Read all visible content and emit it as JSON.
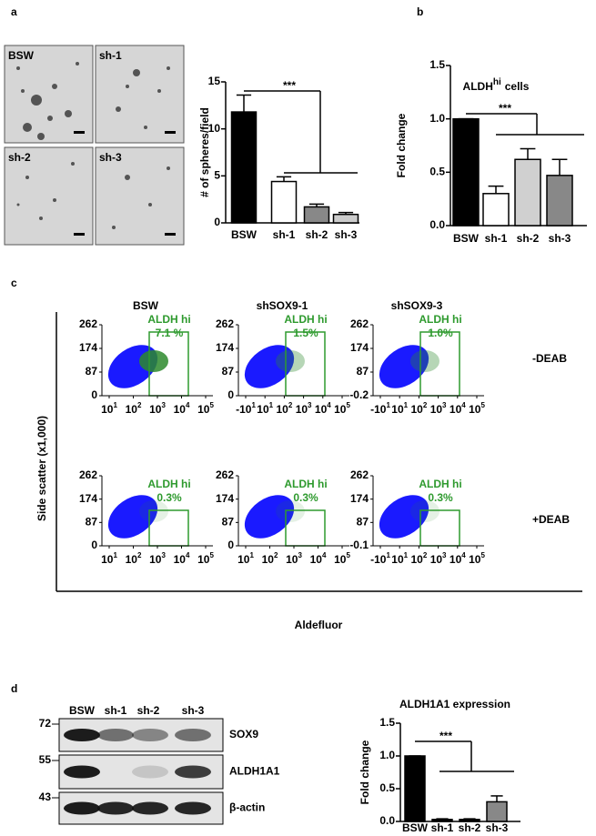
{
  "panel_labels": [
    "a",
    "b",
    "c",
    "d"
  ],
  "spheres": {
    "images": [
      "BSW",
      "sh-1",
      "sh-2",
      "sh-3"
    ]
  },
  "chart_data": [
    {
      "type": "bar",
      "y_label": "# of spheres/field",
      "categories": [
        "BSW",
        "sh-1",
        "sh-2",
        "sh-3"
      ],
      "values": [
        11.8,
        4.4,
        1.7,
        0.9
      ],
      "errors": [
        1.8,
        0.5,
        0.3,
        0.2
      ],
      "colors": [
        "#000000",
        "#ffffff",
        "#888888",
        "#cccccc"
      ],
      "ylim": [
        0,
        15
      ],
      "yticks": [
        0,
        5,
        10,
        15
      ],
      "annotation": "***"
    },
    {
      "type": "bar",
      "title": "ALDH",
      "title_sup": "hi",
      "title_end": "cells",
      "y_label": "Fold change",
      "categories": [
        "BSW",
        "sh-1",
        "sh-2",
        "sh-3"
      ],
      "values": [
        1.0,
        0.3,
        0.62,
        0.47
      ],
      "errors": [
        0,
        0.07,
        0.1,
        0.15
      ],
      "colors": [
        "#000000",
        "#ffffff",
        "#d0d0d0",
        "#888888"
      ],
      "ylim": [
        0,
        1.5
      ],
      "yticks": [
        {
          "value": 0,
          "label": "0.0"
        },
        {
          "value": 0.5,
          "label": "0.5"
        },
        {
          "value": 1,
          "label": "1.0"
        },
        {
          "value": 1.5,
          "label": "1.5"
        }
      ],
      "annotation": "***"
    },
    {
      "type": "bar",
      "title": "ALDH1A1 expression",
      "y_label": "Fold change",
      "categories": [
        "BSW",
        "sh-1",
        "sh-2",
        "sh-3"
      ],
      "values": [
        1.0,
        0.03,
        0.03,
        0.3
      ],
      "errors": [
        0,
        0.01,
        0.01,
        0.09
      ],
      "colors": [
        "#000000",
        "#000000",
        "#000000",
        "#888888"
      ],
      "ylim": [
        0,
        1.5
      ],
      "yticks": [
        {
          "value": 0,
          "label": "0.0"
        },
        {
          "value": 0.5,
          "label": "0.5"
        },
        {
          "value": 1,
          "label": "1.0"
        },
        {
          "value": 1.5,
          "label": "1.5"
        }
      ],
      "annotation": "***"
    }
  ],
  "flow": {
    "columns": [
      "BSW",
      "shSOX9-1",
      "shSOX9-3"
    ],
    "rows": [
      "-DEAB",
      "+DEAB"
    ],
    "y_label": "Side scatter (x1,000)",
    "x_label": "Aldefluor",
    "plots": [
      {
        "gate": "ALDH hi",
        "percent": "7.1 %",
        "yticks": [
          "262",
          "174",
          "87",
          "0"
        ],
        "xticks": [
          {
            "base": "10",
            "exp": "1"
          },
          {
            "base": "10",
            "exp": "2"
          },
          {
            "base": "10",
            "exp": "3"
          },
          {
            "base": "10",
            "exp": "4"
          },
          {
            "base": "10",
            "exp": "5"
          }
        ]
      },
      {
        "gate": "ALDH hi",
        "percent": "1.5%",
        "yticks": [
          "262",
          "174",
          "87",
          "0"
        ],
        "xticks": [
          {
            "base": "-10",
            "exp": "1"
          },
          {
            "base": "10",
            "exp": "1"
          },
          {
            "base": "10",
            "exp": "2"
          },
          {
            "base": "10",
            "exp": "3"
          },
          {
            "base": "10",
            "exp": "4"
          },
          {
            "base": "10",
            "exp": "5"
          }
        ]
      },
      {
        "gate": "ALDH hi",
        "percent": "1.0%",
        "yticks": [
          "262",
          "174",
          "87",
          "-0.2"
        ],
        "xticks": [
          {
            "base": "-10",
            "exp": "1"
          },
          {
            "base": "10",
            "exp": "1"
          },
          {
            "base": "10",
            "exp": "2"
          },
          {
            "base": "10",
            "exp": "3"
          },
          {
            "base": "10",
            "exp": "4"
          },
          {
            "base": "10",
            "exp": "5"
          }
        ]
      },
      {
        "gate": "ALDH hi",
        "percent": "0.3%",
        "yticks": [
          "262",
          "174",
          "87",
          "0"
        ],
        "xticks": [
          {
            "base": "10",
            "exp": "1"
          },
          {
            "base": "10",
            "exp": "2"
          },
          {
            "base": "10",
            "exp": "3"
          },
          {
            "base": "10",
            "exp": "4"
          },
          {
            "base": "10",
            "exp": "5"
          }
        ]
      },
      {
        "gate": "ALDH hi",
        "percent": "0.3%",
        "yticks": [
          "262",
          "174",
          "87",
          "0"
        ],
        "xticks": [
          {
            "base": "10",
            "exp": "1"
          },
          {
            "base": "10",
            "exp": "2"
          },
          {
            "base": "10",
            "exp": "3"
          },
          {
            "base": "10",
            "exp": "4"
          },
          {
            "base": "10",
            "exp": "5"
          }
        ]
      },
      {
        "gate": "ALDH hi",
        "percent": "0.3%",
        "yticks": [
          "262",
          "174",
          "87",
          "-0.1"
        ],
        "xticks": [
          {
            "base": "-10",
            "exp": "1"
          },
          {
            "base": "10",
            "exp": "1"
          },
          {
            "base": "10",
            "exp": "2"
          },
          {
            "base": "10",
            "exp": "3"
          },
          {
            "base": "10",
            "exp": "4"
          },
          {
            "base": "10",
            "exp": "5"
          }
        ]
      }
    ]
  },
  "blot": {
    "lanes": [
      "BSW",
      "sh-1",
      "sh-2",
      "sh-3"
    ],
    "markers": [
      "72",
      "55",
      "43"
    ],
    "proteins": [
      "SOX9",
      "ALDH1A1",
      "β-actin"
    ]
  }
}
